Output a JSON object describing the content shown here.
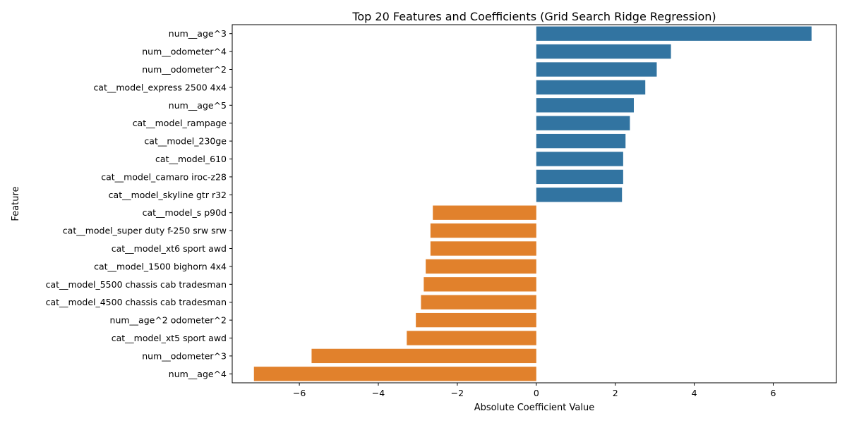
{
  "chart_data": {
    "type": "bar",
    "orientation": "horizontal",
    "title": "Top 20 Features and Coefficients (Grid Search Ridge Regression)",
    "xlabel": "Absolute Coefficient Value",
    "ylabel": "Feature",
    "xlim": [
      -7.7,
      7.6
    ],
    "xticks": [
      -6,
      -4,
      -2,
      0,
      2,
      4,
      6
    ],
    "xtick_labels": [
      "−6",
      "−4",
      "−2",
      "0",
      "2",
      "4",
      "6"
    ],
    "grid": false,
    "colors": {
      "positive": "#3274a1",
      "negative": "#e1812c"
    },
    "categories": [
      "num__age^3",
      "num__odometer^4",
      "num__odometer^2",
      "cat__model_express 2500 4x4",
      "num__age^5",
      "cat__model_rampage",
      "cat__model_230ge",
      "cat__model_610",
      "cat__model_camaro iroc-z28",
      "cat__model_skyline gtr r32",
      "cat__model_s p90d",
      "cat__model_super duty f-250 srw srw",
      "cat__model_xt6 sport awd",
      "cat__model_1500 bighorn 4x4",
      "cat__model_5500 chassis cab tradesman",
      "cat__model_4500 chassis cab tradesman",
      "num__age^2 odometer^2",
      "cat__model_xt5 sport awd",
      "num__odometer^3",
      "num__age^4"
    ],
    "values": [
      6.97,
      3.41,
      3.05,
      2.76,
      2.47,
      2.37,
      2.26,
      2.2,
      2.2,
      2.17,
      -2.62,
      -2.68,
      -2.68,
      -2.8,
      -2.85,
      -2.92,
      -3.05,
      -3.28,
      -5.69,
      -7.15
    ]
  }
}
